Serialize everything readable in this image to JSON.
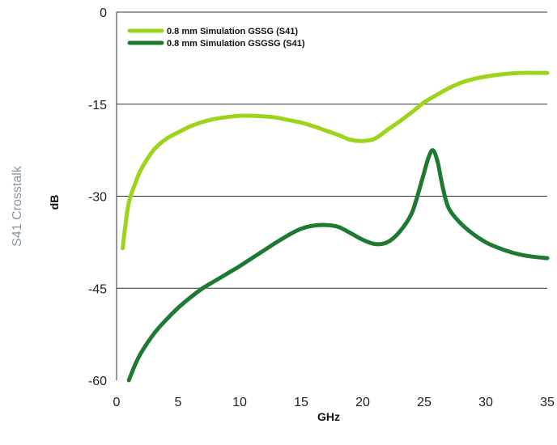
{
  "side_title": "S41 Crosstalk",
  "chart_data": {
    "type": "line",
    "xlabel": "GHz",
    "ylabel": "dB",
    "xlim": [
      0,
      35
    ],
    "ylim": [
      -60,
      0
    ],
    "x_ticks": [
      0,
      5,
      10,
      15,
      20,
      25,
      30,
      35
    ],
    "y_ticks": [
      0,
      -15,
      -30,
      -45,
      -60
    ],
    "grid": "horizontal",
    "legend_position": "top-left",
    "series": [
      {
        "name": "0.8 mm Simulation GSSG (S41)",
        "color": "#9ed31b",
        "x": [
          0.5,
          0.7,
          1,
          1.5,
          2,
          3,
          4,
          5,
          6,
          7,
          8,
          9,
          10,
          11,
          12,
          13,
          14,
          15,
          16,
          17,
          18,
          19,
          20,
          21,
          22,
          23,
          24,
          25,
          26,
          27,
          28,
          29,
          30,
          31,
          32,
          33,
          34,
          35
        ],
        "values": [
          -38.5,
          -35,
          -31,
          -28,
          -25.6,
          -22.5,
          -20.7,
          -19.6,
          -18.6,
          -17.9,
          -17.4,
          -17.1,
          -16.9,
          -16.9,
          -17.0,
          -17.2,
          -17.6,
          -18.0,
          -18.6,
          -19.3,
          -20.0,
          -20.8,
          -21.0,
          -20.6,
          -19.2,
          -17.8,
          -16.3,
          -14.7,
          -13.5,
          -12.4,
          -11.5,
          -10.9,
          -10.5,
          -10.2,
          -10.0,
          -9.9,
          -9.9,
          -9.9
        ]
      },
      {
        "name": "0.8 mm Simulation GSGSG (S41)",
        "color": "#1e7a33",
        "x": [
          1,
          1.5,
          2,
          3,
          4,
          5,
          6,
          7,
          8,
          9,
          10,
          11,
          12,
          13,
          14,
          15,
          16,
          17,
          18,
          19,
          20,
          21,
          22,
          23,
          24,
          24.8,
          25.3,
          25.7,
          26.1,
          26.5,
          27,
          28,
          29,
          30,
          31,
          32,
          33,
          34,
          35
        ],
        "values": [
          -60,
          -57.5,
          -55.5,
          -52.5,
          -50.2,
          -48.2,
          -46.5,
          -45.0,
          -43.8,
          -42.6,
          -41.4,
          -40.1,
          -38.8,
          -37.5,
          -36.3,
          -35.3,
          -34.8,
          -34.7,
          -35.0,
          -36.0,
          -37.1,
          -37.8,
          -37.5,
          -35.8,
          -32.7,
          -27.5,
          -24.0,
          -22.5,
          -24.5,
          -28.5,
          -32.0,
          -34.5,
          -36.2,
          -37.5,
          -38.4,
          -39.1,
          -39.6,
          -39.9,
          -40.1
        ]
      }
    ]
  }
}
